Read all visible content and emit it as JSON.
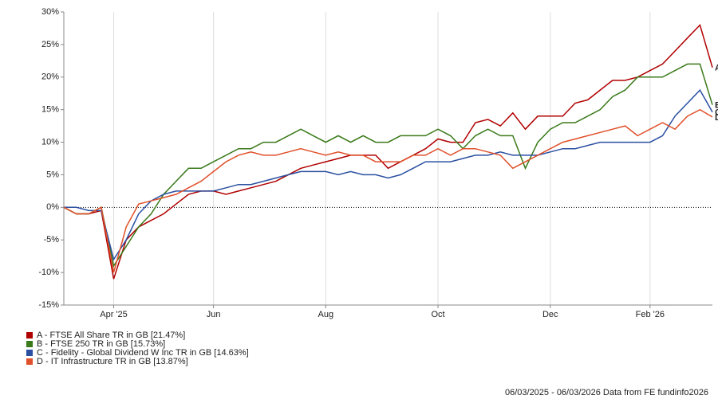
{
  "chart_data": {
    "type": "line",
    "categories": [
      null,
      null,
      null,
      null,
      "Apr '25",
      null,
      null,
      null,
      null,
      null,
      null,
      null,
      "Jun",
      null,
      null,
      null,
      null,
      null,
      null,
      null,
      null,
      "Aug",
      null,
      null,
      null,
      null,
      null,
      null,
      null,
      null,
      "Oct",
      null,
      null,
      null,
      null,
      null,
      null,
      null,
      null,
      "Dec",
      null,
      null,
      null,
      null,
      null,
      null,
      null,
      "Feb '26",
      null,
      null,
      null,
      null,
      null
    ],
    "series": [
      {
        "name": "A - FTSE All Share TR in GB [21.47%]",
        "tag": "A",
        "color": "#b00000",
        "values": [
          0,
          -1,
          -1,
          -0.5,
          -11,
          -5,
          -3,
          -2,
          -1,
          0.5,
          2,
          2.5,
          2.5,
          2,
          2.5,
          3,
          3.5,
          4,
          5,
          6,
          6.5,
          7,
          7.5,
          8,
          8,
          8,
          6,
          7,
          8,
          9,
          10.5,
          10,
          10,
          13,
          13.5,
          12.5,
          14.5,
          12,
          14,
          14,
          14,
          16,
          16.5,
          18,
          19.5,
          19.5,
          20,
          21,
          22,
          24,
          26,
          28,
          21.47
        ]
      },
      {
        "name": "B - FTSE 250 TR in GB [15.73%]",
        "tag": "B",
        "color": "#3a7a1a",
        "values": [
          0,
          -1,
          -1,
          0,
          -9,
          -6,
          -3,
          -1,
          2,
          4,
          6,
          6,
          7,
          8,
          9,
          9,
          10,
          10,
          11,
          12,
          11,
          10,
          11,
          10,
          11,
          10,
          10,
          11,
          11,
          11,
          12,
          11,
          9,
          11,
          12,
          11,
          11,
          6,
          10,
          12,
          13,
          13,
          14,
          15,
          17,
          18,
          20,
          20,
          20,
          21,
          22,
          22,
          15.73
        ]
      },
      {
        "name": "C - Fidelity - Global Dividend W Inc TR in GB [14.63%]",
        "tag": "C",
        "color": "#2a4fa0",
        "values": [
          0,
          0,
          -0.5,
          -0.5,
          -8,
          -5,
          -1,
          1,
          2,
          2.5,
          2.5,
          2.5,
          2.5,
          3,
          3.5,
          3.5,
          4,
          4.5,
          5,
          5.5,
          5.5,
          5.5,
          5,
          5.5,
          5,
          5,
          4.5,
          5,
          6,
          7,
          7,
          7,
          7.5,
          8,
          8,
          8.5,
          8,
          8,
          8,
          8.5,
          9,
          9,
          9.5,
          10,
          10,
          10,
          10,
          10,
          11,
          14,
          16,
          18,
          14.63
        ]
      },
      {
        "name": "D - IT Infrastructure TR in GB [13.87%]",
        "tag": "D",
        "color": "#e0502a",
        "values": [
          0,
          -1,
          -1,
          0,
          -10,
          -3,
          0.5,
          1,
          1.5,
          2,
          3,
          4,
          5.5,
          7,
          8,
          8.5,
          8,
          8,
          8.5,
          9,
          8.5,
          8,
          8.5,
          8,
          8,
          7,
          7,
          7,
          8,
          8,
          9,
          8,
          9,
          9,
          8.5,
          8,
          6,
          7,
          8,
          9,
          10,
          10.5,
          11,
          11.5,
          12,
          12.5,
          11,
          12,
          13,
          12,
          14,
          15,
          13.87
        ]
      }
    ],
    "ylim": [
      -15,
      30
    ],
    "yticks": [
      {
        "value": -15,
        "label": "-15%"
      },
      {
        "value": -10,
        "label": "-10%"
      },
      {
        "value": -5,
        "label": "-5%"
      },
      {
        "value": 0,
        "label": "0%"
      },
      {
        "value": 5,
        "label": "5%"
      },
      {
        "value": 10,
        "label": "10%"
      },
      {
        "value": 15,
        "label": "15%"
      },
      {
        "value": 20,
        "label": "20%"
      },
      {
        "value": 25,
        "label": "25%"
      },
      {
        "value": 30,
        "label": "30%"
      }
    ],
    "reference_line": 0,
    "grid": true,
    "footer": "06/03/2025 - 06/03/2026 Data from FE fundinfo2026"
  }
}
